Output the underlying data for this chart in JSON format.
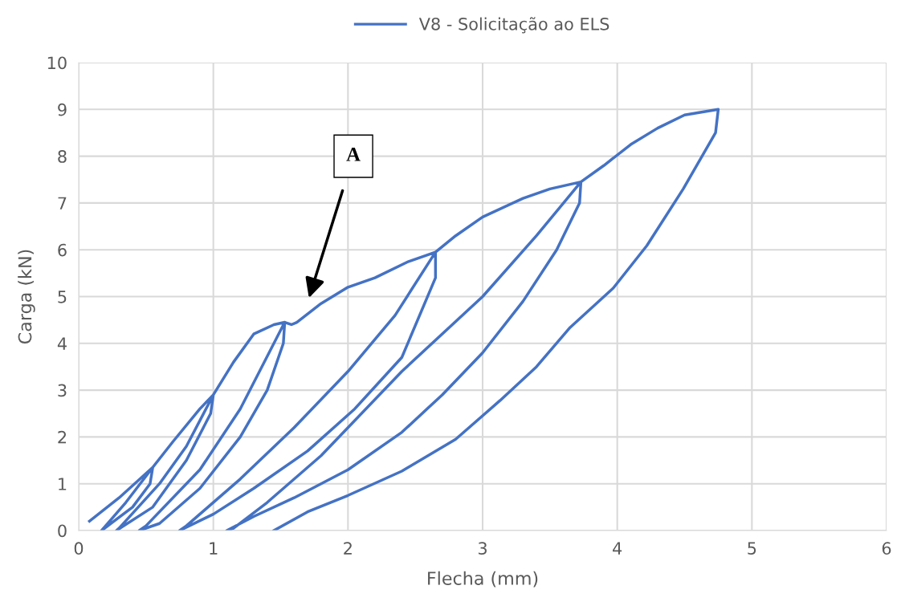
{
  "chart_data": {
    "type": "line",
    "xlabel": "Flecha (mm)",
    "ylabel": "Carga (kN)",
    "xlim": [
      0,
      6
    ],
    "xticks": [
      0,
      1,
      2,
      3,
      4,
      5,
      6
    ],
    "ylim": [
      0,
      10
    ],
    "yticks": [
      0,
      1,
      2,
      3,
      4,
      5,
      6,
      7,
      8,
      9,
      10
    ],
    "grid": true,
    "legend": "top",
    "marker": "none",
    "line_style": "solid",
    "annotations": [
      "A"
    ],
    "series": [
      {
        "name": "V8 - Solicitação ao ELS",
        "color": "#4472c4",
        "x": [
          0.08,
          0.3,
          0.55,
          0.53,
          0.4,
          0.17,
          0.2,
          0.35,
          0.55,
          0.7,
          0.9,
          1.0,
          0.98,
          0.8,
          0.55,
          0.28,
          0.3,
          0.6,
          0.8,
          1.0,
          1.15,
          1.3,
          1.45,
          1.53,
          1.52,
          1.4,
          1.2,
          0.9,
          0.6,
          0.45,
          0.5,
          0.9,
          1.2,
          1.53,
          1.58,
          1.62,
          1.8,
          2.0,
          2.2,
          2.45,
          2.65,
          2.65,
          2.4,
          2.05,
          1.7,
          1.3,
          1.0,
          0.75,
          0.8,
          1.2,
          1.6,
          2.0,
          2.35,
          2.65,
          2.8,
          3.0,
          3.3,
          3.5,
          3.73,
          3.72,
          3.55,
          3.3,
          3.0,
          2.7,
          2.4,
          2.0,
          1.6,
          1.3,
          1.1,
          1.15,
          1.4,
          1.8,
          2.4,
          3.0,
          3.4,
          3.73,
          3.9,
          4.1,
          4.3,
          4.5,
          4.75,
          4.73,
          4.49,
          4.22,
          3.97,
          3.65,
          3.4,
          3.13,
          2.8,
          2.4,
          2.0,
          1.7,
          1.45
        ],
        "values": [
          0.2,
          0.7,
          1.35,
          1.0,
          0.5,
          0.0,
          0.1,
          0.6,
          1.35,
          1.9,
          2.6,
          2.9,
          2.5,
          1.5,
          0.5,
          0.0,
          0.05,
          1.0,
          1.8,
          2.9,
          3.6,
          4.2,
          4.4,
          4.45,
          4.0,
          3.0,
          2.0,
          0.9,
          0.15,
          0.0,
          0.1,
          1.3,
          2.6,
          4.45,
          4.4,
          4.45,
          4.85,
          5.2,
          5.4,
          5.75,
          5.95,
          5.4,
          3.7,
          2.6,
          1.7,
          0.9,
          0.35,
          0.0,
          0.1,
          1.1,
          2.2,
          3.4,
          4.6,
          5.95,
          6.3,
          6.7,
          7.1,
          7.3,
          7.45,
          7.0,
          6.0,
          4.9,
          3.8,
          2.9,
          2.1,
          1.3,
          0.7,
          0.3,
          0.0,
          0.05,
          0.6,
          1.6,
          3.4,
          5.0,
          6.3,
          7.45,
          7.8,
          8.25,
          8.6,
          8.88,
          9.0,
          8.5,
          7.3,
          6.09,
          5.18,
          4.34,
          3.5,
          2.78,
          1.95,
          1.27,
          0.75,
          0.4,
          0.0
        ]
      }
    ]
  }
}
